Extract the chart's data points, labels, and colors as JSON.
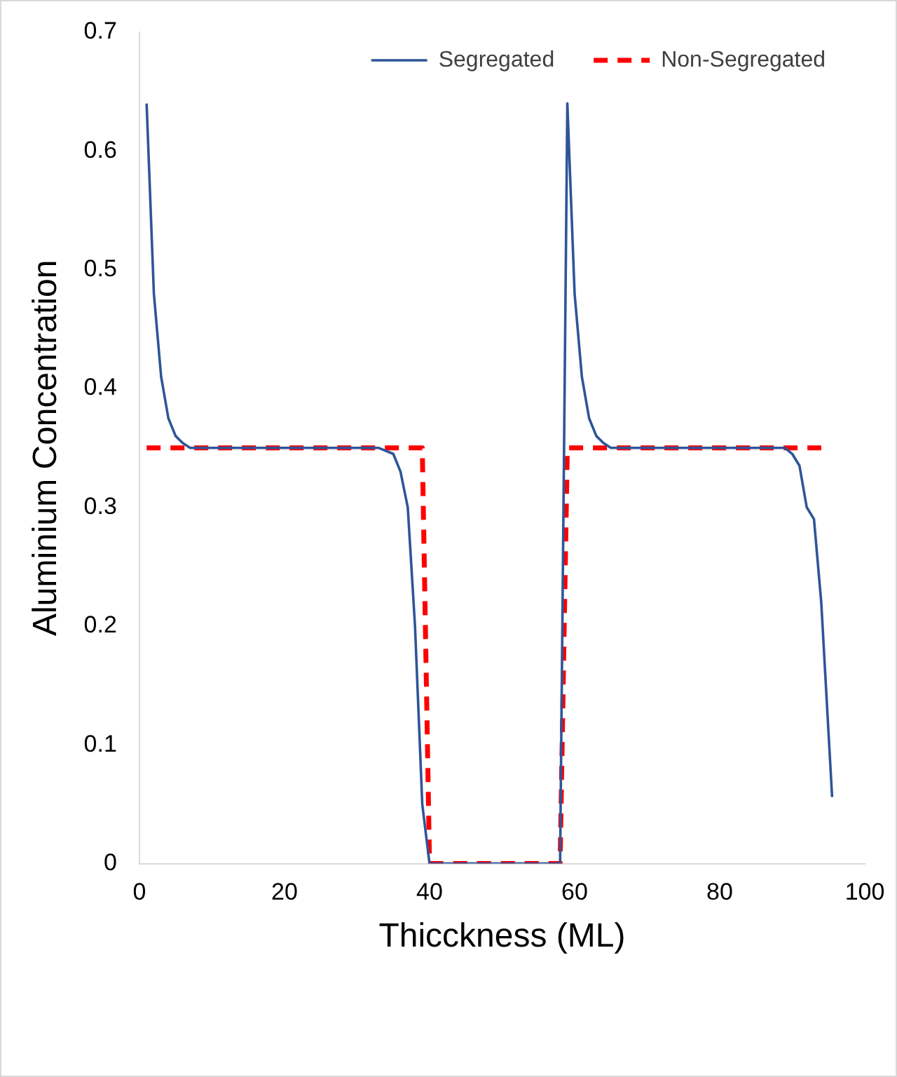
{
  "chart_data": {
    "type": "line",
    "xlabel": "Thicckness (ML)",
    "ylabel": "Aluminium Concentration",
    "xlim": [
      0,
      100
    ],
    "xticks": [
      0,
      20,
      40,
      60,
      80,
      100
    ],
    "ylim": [
      0,
      0.7
    ],
    "yticks": [
      0,
      0.1,
      0.2,
      0.3,
      0.4,
      0.5,
      0.6,
      0.7
    ],
    "grid": false,
    "legend": "top right",
    "marker": "none",
    "series": [
      {
        "name": "Segregated",
        "color": "#2f5597",
        "line_style": "solid",
        "x": [
          1,
          2,
          3,
          4,
          5,
          6,
          7,
          33,
          35,
          36,
          37,
          38,
          39,
          40,
          58,
          59,
          60,
          61,
          62,
          63,
          64,
          65,
          89,
          90,
          91,
          92,
          93,
          94,
          95.5
        ],
        "values": [
          0.64,
          0.48,
          0.41,
          0.375,
          0.36,
          0.354,
          0.35,
          0.35,
          0.345,
          0.33,
          0.3,
          0.2,
          0.05,
          0,
          0,
          0.64,
          0.48,
          0.41,
          0.375,
          0.36,
          0.354,
          0.35,
          0.35,
          0.345,
          0.335,
          0.3,
          0.29,
          0.22,
          0.056
        ]
      },
      {
        "name": "Non-Segregated",
        "color": "#ff0000",
        "line_style": "dashed",
        "x": [
          1,
          39,
          40,
          58,
          59,
          94
        ],
        "values": [
          0.35,
          0.35,
          0,
          0,
          0.35,
          0.35
        ]
      }
    ]
  }
}
